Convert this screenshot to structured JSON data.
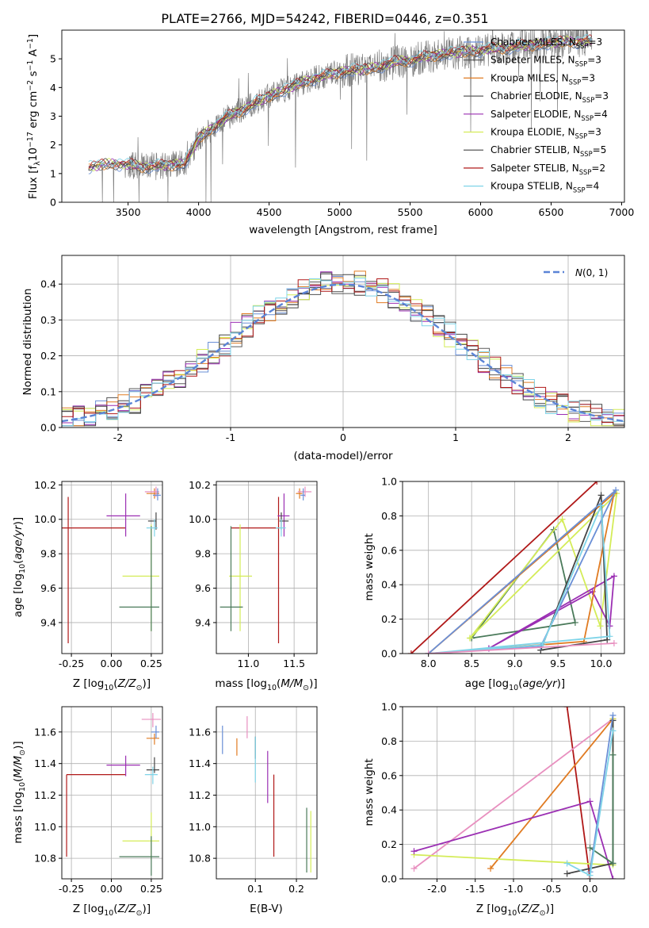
{
  "chart_data": [
    {
      "id": "spectrum",
      "type": "line",
      "title": "PLATE=2766, MJD=54242, FIBERID=0446, z=0.351",
      "xlabel": "wavelength [Angstrom, rest frame]",
      "ylabel": "Flux [f_λ 10⁻¹⁷ erg cm⁻² s⁻¹ A⁻¹]",
      "xlim": [
        3030,
        7020
      ],
      "ylim": [
        0,
        6
      ],
      "xticks": [
        3500,
        4000,
        4500,
        5000,
        5500,
        6000,
        6500,
        7000
      ],
      "yticks": [
        0,
        1,
        2,
        3,
        4,
        5
      ],
      "grid": false,
      "legend_position": "upper-right",
      "legend": [
        {
          "label": "Chabrier MILES, N_SSP=3",
          "color": "#6a8fd6"
        },
        {
          "label": "Salpeter MILES, N_SSP=3",
          "color": "#505050"
        },
        {
          "label": "Kroupa MILES, N_SSP=3",
          "color": "#e07b22"
        },
        {
          "label": "Chabrier ELODIE, N_SSP=3",
          "color": "#5b5b5b"
        },
        {
          "label": "Salpeter ELODIE, N_SSP=4",
          "color": "#9b2fb3"
        },
        {
          "label": "Kroupa ELODIE, N_SSP=3",
          "color": "#d4ec58"
        },
        {
          "label": "Chabrier STELIB, N_SSP=5",
          "color": "#454545"
        },
        {
          "label": "Salpeter STELIB, N_SSP=2",
          "color": "#b01818"
        },
        {
          "label": "Kroupa STELIB, N_SSP=4",
          "color": "#7fd4e8"
        }
      ],
      "continuum_points": [
        [
          3220,
          1.2
        ],
        [
          3300,
          1.3
        ],
        [
          3400,
          1.35
        ],
        [
          3500,
          1.3
        ],
        [
          3600,
          1.25
        ],
        [
          3700,
          1.25
        ],
        [
          3800,
          1.3
        ],
        [
          3900,
          1.35
        ],
        [
          4000,
          2.2
        ],
        [
          4100,
          2.6
        ],
        [
          4200,
          2.95
        ],
        [
          4300,
          3.2
        ],
        [
          4400,
          3.45
        ],
        [
          4500,
          3.7
        ],
        [
          4600,
          3.9
        ],
        [
          4700,
          4.1
        ],
        [
          4800,
          4.3
        ],
        [
          4900,
          4.4
        ],
        [
          5000,
          4.55
        ],
        [
          5100,
          4.6
        ],
        [
          5200,
          4.65
        ],
        [
          5300,
          4.75
        ],
        [
          5400,
          4.9
        ],
        [
          5500,
          4.95
        ],
        [
          5600,
          5.05
        ],
        [
          5700,
          5.15
        ],
        [
          5800,
          5.2
        ],
        [
          5900,
          5.25
        ],
        [
          6000,
          5.3
        ],
        [
          6100,
          5.35
        ],
        [
          6200,
          5.4
        ],
        [
          6300,
          5.45
        ],
        [
          6400,
          5.5
        ],
        [
          6500,
          5.55
        ],
        [
          6600,
          5.6
        ],
        [
          6700,
          5.6
        ],
        [
          6780,
          5.6
        ]
      ]
    },
    {
      "id": "residuals",
      "type": "histogram",
      "xlabel": "(data-model)/error",
      "ylabel": "Normed distribution",
      "xlim": [
        -2.5,
        2.5
      ],
      "ylim": [
        0,
        0.48
      ],
      "xticks": [
        -2,
        -1,
        0,
        1,
        2
      ],
      "yticks": [
        0.0,
        0.1,
        0.2,
        0.3,
        0.4
      ],
      "grid": true,
      "legend": [
        {
          "label": "N(0,1)",
          "color": "#5b84d6",
          "style": "dashed"
        }
      ],
      "legend_position": "upper-right",
      "normal_curve": {
        "mean": 0,
        "sigma": 1
      }
    },
    {
      "id": "age-vs-Z",
      "type": "scatter",
      "xlabel": "Z [log10(Z/Z_⊙)]",
      "ylabel": "age [log10(age/yr)]",
      "xlim": [
        -0.31,
        0.32
      ],
      "ylim": [
        9.22,
        10.22
      ],
      "xticks": [
        -0.25,
        0.0,
        0.25
      ],
      "yticks": [
        9.4,
        9.6,
        9.8,
        10.0,
        10.2
      ],
      "grid": true,
      "points": [
        {
          "x": -0.27,
          "y": 9.95,
          "xerr": [
            0.27,
            0.36
          ],
          "yerr": [
            0.67,
            0.18
          ],
          "color": "#b01818"
        },
        {
          "x": 0.09,
          "y": 10.02,
          "xerr": [
            0.12,
            0.09
          ],
          "yerr": [
            0.12,
            0.13
          ],
          "color": "#9b2fb3"
        },
        {
          "x": 0.25,
          "y": 9.67,
          "xerr": [
            0.18,
            0.05
          ],
          "yerr": [
            0.32,
            0.3
          ],
          "color": "#d4ec58"
        },
        {
          "x": 0.25,
          "y": 9.49,
          "xerr": [
            0.2,
            0.05
          ],
          "yerr": [
            0.14,
            0.47
          ],
          "color": "#4a7a5a"
        },
        {
          "x": 0.28,
          "y": 9.99,
          "xerr": [
            0.05,
            0.0
          ],
          "yerr": [
            0.05,
            0.05
          ],
          "color": "#454545"
        },
        {
          "x": 0.27,
          "y": 9.95,
          "xerr": [
            0.05,
            0.02
          ],
          "yerr": [
            0.05,
            0.05
          ],
          "color": "#7fd4e8"
        },
        {
          "x": 0.27,
          "y": 10.15,
          "xerr": [
            0.05,
            0.03
          ],
          "yerr": [
            0.03,
            0.03
          ],
          "color": "#e07b22"
        },
        {
          "x": 0.28,
          "y": 10.16,
          "xerr": [
            0.07,
            0.02
          ],
          "yerr": [
            0.03,
            0.03
          ],
          "color": "#e88fbf"
        },
        {
          "x": 0.29,
          "y": 10.14,
          "xerr": [
            0.03,
            0.02
          ],
          "yerr": [
            0.03,
            0.04
          ],
          "color": "#6a8fd6"
        }
      ]
    },
    {
      "id": "age-vs-mass",
      "type": "scatter",
      "xlabel": "mass [log10(M/M_⊙)]",
      "xlim": [
        10.65,
        11.75
      ],
      "ylim": [
        9.22,
        10.22
      ],
      "xticks": [
        11.0,
        11.5
      ],
      "yticks": [
        9.4,
        9.6,
        9.8,
        10.0,
        10.2
      ],
      "grid": true,
      "points": [
        {
          "x": 11.33,
          "y": 9.95,
          "xerr": [
            0.52,
            0.0
          ],
          "yerr": [
            0.67,
            0.18
          ],
          "color": "#b01818"
        },
        {
          "x": 11.39,
          "y": 10.02,
          "xerr": [
            0.07,
            0.06
          ],
          "yerr": [
            0.12,
            0.13
          ],
          "color": "#9b2fb3"
        },
        {
          "x": 10.91,
          "y": 9.67,
          "xerr": [
            0.12,
            0.13
          ],
          "yerr": [
            0.32,
            0.3
          ],
          "color": "#d4ec58"
        },
        {
          "x": 10.81,
          "y": 9.49,
          "xerr": [
            0.12,
            0.13
          ],
          "yerr": [
            0.14,
            0.47
          ],
          "color": "#4a7a5a"
        },
        {
          "x": 11.36,
          "y": 9.99,
          "xerr": [
            0.02,
            0.08
          ],
          "yerr": [
            0.05,
            0.05
          ],
          "color": "#454545"
        },
        {
          "x": 11.36,
          "y": 9.95,
          "xerr": [
            0.06,
            0.05
          ],
          "yerr": [
            0.05,
            0.05
          ],
          "color": "#7fd4e8"
        },
        {
          "x": 11.56,
          "y": 10.15,
          "xerr": [
            0.04,
            0.03
          ],
          "yerr": [
            0.03,
            0.03
          ],
          "color": "#e07b22"
        },
        {
          "x": 11.62,
          "y": 10.16,
          "xerr": [
            0.08,
            0.07
          ],
          "yerr": [
            0.03,
            0.03
          ],
          "color": "#e88fbf"
        },
        {
          "x": 11.6,
          "y": 10.14,
          "xerr": [
            0.03,
            0.02
          ],
          "yerr": [
            0.03,
            0.04
          ],
          "color": "#6a8fd6"
        }
      ]
    },
    {
      "id": "weight-vs-age",
      "type": "line",
      "xlabel": "age [log10(age/yr)]",
      "ylabel": "mass weight",
      "xlim": [
        7.7,
        10.27
      ],
      "ylim": [
        0,
        1
      ],
      "xticks": [
        8.0,
        8.5,
        9.0,
        9.5,
        10.0
      ],
      "yticks": [
        0.0,
        0.2,
        0.4,
        0.6,
        0.8,
        1.0
      ],
      "grid": true,
      "series": [
        {
          "color": "#b01818",
          "x": [
            7.8,
            9.95
          ],
          "y": [
            0.0,
            1.0
          ]
        },
        {
          "color": "#4a7a5a",
          "x": [
            8.5,
            9.45,
            9.7,
            8.5
          ],
          "y": [
            0.09,
            0.72,
            0.18,
            0.09
          ]
        },
        {
          "color": "#d4ec58",
          "x": [
            8.48,
            9.55,
            9.99,
            10.18,
            8.48
          ],
          "y": [
            0.09,
            0.78,
            0.16,
            0.93,
            0.09
          ]
        },
        {
          "color": "#9b2fb3",
          "x": [
            8.7,
            9.9,
            10.1,
            10.15,
            8.7
          ],
          "y": [
            0.03,
            0.36,
            0.16,
            0.45,
            0.03
          ]
        },
        {
          "color": "#e07b22",
          "x": [
            8.0,
            9.8,
            10.15,
            8.0
          ],
          "y": [
            0.0,
            0.07,
            0.93,
            0.0
          ]
        },
        {
          "color": "#454545",
          "x": [
            9.3,
            10.0,
            10.07,
            9.3
          ],
          "y": [
            0.02,
            0.92,
            0.08,
            0.02
          ]
        },
        {
          "color": "#6a8fd6",
          "x": [
            8.0,
            9.3,
            10.17,
            8.0
          ],
          "y": [
            0.0,
            0.04,
            0.95,
            0.0
          ]
        },
        {
          "color": "#7fd4e8",
          "x": [
            8.0,
            9.32,
            10.0,
            10.1,
            8.0
          ],
          "y": [
            0.0,
            0.05,
            0.86,
            0.1,
            0.0
          ]
        },
        {
          "color": "#e88fbf",
          "x": [
            8.0,
            10.15,
            8.0
          ],
          "y": [
            0.0,
            0.06,
            0.0
          ]
        }
      ]
    },
    {
      "id": "mass-vs-Z",
      "type": "scatter",
      "xlabel": "Z [log10(Z/Z_⊙)]",
      "ylabel": "mass [log10(M/M_⊙)]",
      "xlim": [
        -0.31,
        0.32
      ],
      "ylim": [
        10.67,
        11.76
      ],
      "xticks": [
        -0.25,
        0.0,
        0.25
      ],
      "yticks": [
        10.8,
        11.0,
        11.2,
        11.4,
        11.6
      ],
      "grid": true,
      "points": [
        {
          "x": -0.28,
          "y": 11.33,
          "xerr": [
            0.0,
            0.37
          ],
          "yerr": [
            0.52,
            0.0
          ],
          "color": "#b01818"
        },
        {
          "x": 0.09,
          "y": 11.39,
          "xerr": [
            0.12,
            0.09
          ],
          "yerr": [
            0.07,
            0.06
          ],
          "color": "#9b2fb3"
        },
        {
          "x": 0.25,
          "y": 10.91,
          "xerr": [
            0.18,
            0.05
          ],
          "yerr": [
            0.12,
            0.18
          ],
          "color": "#d4ec58"
        },
        {
          "x": 0.25,
          "y": 10.81,
          "xerr": [
            0.2,
            0.05
          ],
          "yerr": [
            0.12,
            0.13
          ],
          "color": "#4a7a5a"
        },
        {
          "x": 0.27,
          "y": 11.36,
          "xerr": [
            0.05,
            0.03
          ],
          "yerr": [
            0.02,
            0.08
          ],
          "color": "#454545"
        },
        {
          "x": 0.26,
          "y": 11.33,
          "xerr": [
            0.05,
            0.03
          ],
          "yerr": [
            0.06,
            0.05
          ],
          "color": "#7fd4e8"
        },
        {
          "x": 0.27,
          "y": 11.56,
          "xerr": [
            0.05,
            0.03
          ],
          "yerr": [
            0.04,
            0.03
          ],
          "color": "#e07b22"
        },
        {
          "x": 0.26,
          "y": 11.68,
          "xerr": [
            0.07,
            0.05
          ],
          "yerr": [
            0.05,
            0.04
          ],
          "color": "#e88fbf"
        },
        {
          "x": 0.28,
          "y": 11.6,
          "xerr": [
            0.03,
            0.02
          ],
          "yerr": [
            0.04,
            0.04
          ],
          "color": "#6a8fd6"
        }
      ]
    },
    {
      "id": "mass-vs-EBV",
      "type": "scatter",
      "xlabel": "E(B-V)",
      "xlim": [
        0.005,
        0.25
      ],
      "ylim": [
        10.67,
        11.76
      ],
      "xticks": [
        0.1,
        0.2
      ],
      "yticks": [
        10.8,
        11.0,
        11.2,
        11.4,
        11.6
      ],
      "grid": true,
      "points": [
        {
          "x": 0.02,
          "y": 11.55,
          "yerr": [
            0.09,
            0.09
          ],
          "color": "#6a8fd6"
        },
        {
          "x": 0.055,
          "y": 11.5,
          "yerr": [
            0.05,
            0.06
          ],
          "color": "#e07b22"
        },
        {
          "x": 0.08,
          "y": 11.62,
          "yerr": [
            0.06,
            0.08
          ],
          "color": "#e88fbf"
        },
        {
          "x": 0.1,
          "y": 11.5,
          "yerr": [
            0.07,
            0.07
          ],
          "color": "#454545"
        },
        {
          "x": 0.1,
          "y": 11.4,
          "yerr": [
            0.12,
            0.17
          ],
          "color": "#7fd4e8"
        },
        {
          "x": 0.13,
          "y": 11.32,
          "yerr": [
            0.17,
            0.16
          ],
          "color": "#9b2fb3"
        },
        {
          "x": 0.145,
          "y": 11.07,
          "yerr": [
            0.26,
            0.26
          ],
          "color": "#b01818"
        },
        {
          "x": 0.225,
          "y": 10.91,
          "yerr": [
            0.2,
            0.21
          ],
          "color": "#4a7a5a"
        },
        {
          "x": 0.235,
          "y": 10.91,
          "yerr": [
            0.2,
            0.19
          ],
          "color": "#d4ec58"
        }
      ]
    },
    {
      "id": "weight-vs-Z",
      "type": "line",
      "xlabel": "Z [log10(Z/Z_⊙)]",
      "ylabel": "mass weight",
      "xlim": [
        -2.45,
        0.45
      ],
      "ylim": [
        0,
        1
      ],
      "xticks": [
        -2.0,
        -1.5,
        -1.0,
        -0.5,
        0.0
      ],
      "yticks": [
        0.0,
        0.2,
        0.4,
        0.6,
        0.8,
        1.0
      ],
      "grid": true,
      "series": [
        {
          "color": "#b01818",
          "x": [
            -0.3,
            0.0
          ],
          "y": [
            1.0,
            0.0
          ]
        },
        {
          "color": "#e88fbf",
          "x": [
            -2.3,
            0.3
          ],
          "y": [
            0.06,
            0.93
          ]
        },
        {
          "color": "#e07b22",
          "x": [
            -1.3,
            0.3
          ],
          "y": [
            0.06,
            0.93
          ]
        },
        {
          "color": "#d4ec58",
          "x": [
            -2.3,
            0.3,
            0.3
          ],
          "y": [
            0.14,
            0.08,
            0.93
          ]
        },
        {
          "color": "#9b2fb3",
          "x": [
            -2.3,
            0.0,
            0.3
          ],
          "y": [
            0.16,
            0.45,
            0.0
          ]
        },
        {
          "color": "#454545",
          "x": [
            -0.3,
            0.3,
            0.3
          ],
          "y": [
            0.03,
            0.09,
            0.92
          ]
        },
        {
          "color": "#4a7a5a",
          "x": [
            0.0,
            0.3,
            0.3
          ],
          "y": [
            0.18,
            0.09,
            0.72
          ]
        },
        {
          "color": "#6a8fd6",
          "x": [
            0.0,
            0.3
          ],
          "y": [
            0.04,
            0.95
          ]
        },
        {
          "color": "#7fd4e8",
          "x": [
            -0.3,
            0.0,
            0.3
          ],
          "y": [
            0.09,
            0.02,
            0.86
          ]
        }
      ]
    }
  ]
}
